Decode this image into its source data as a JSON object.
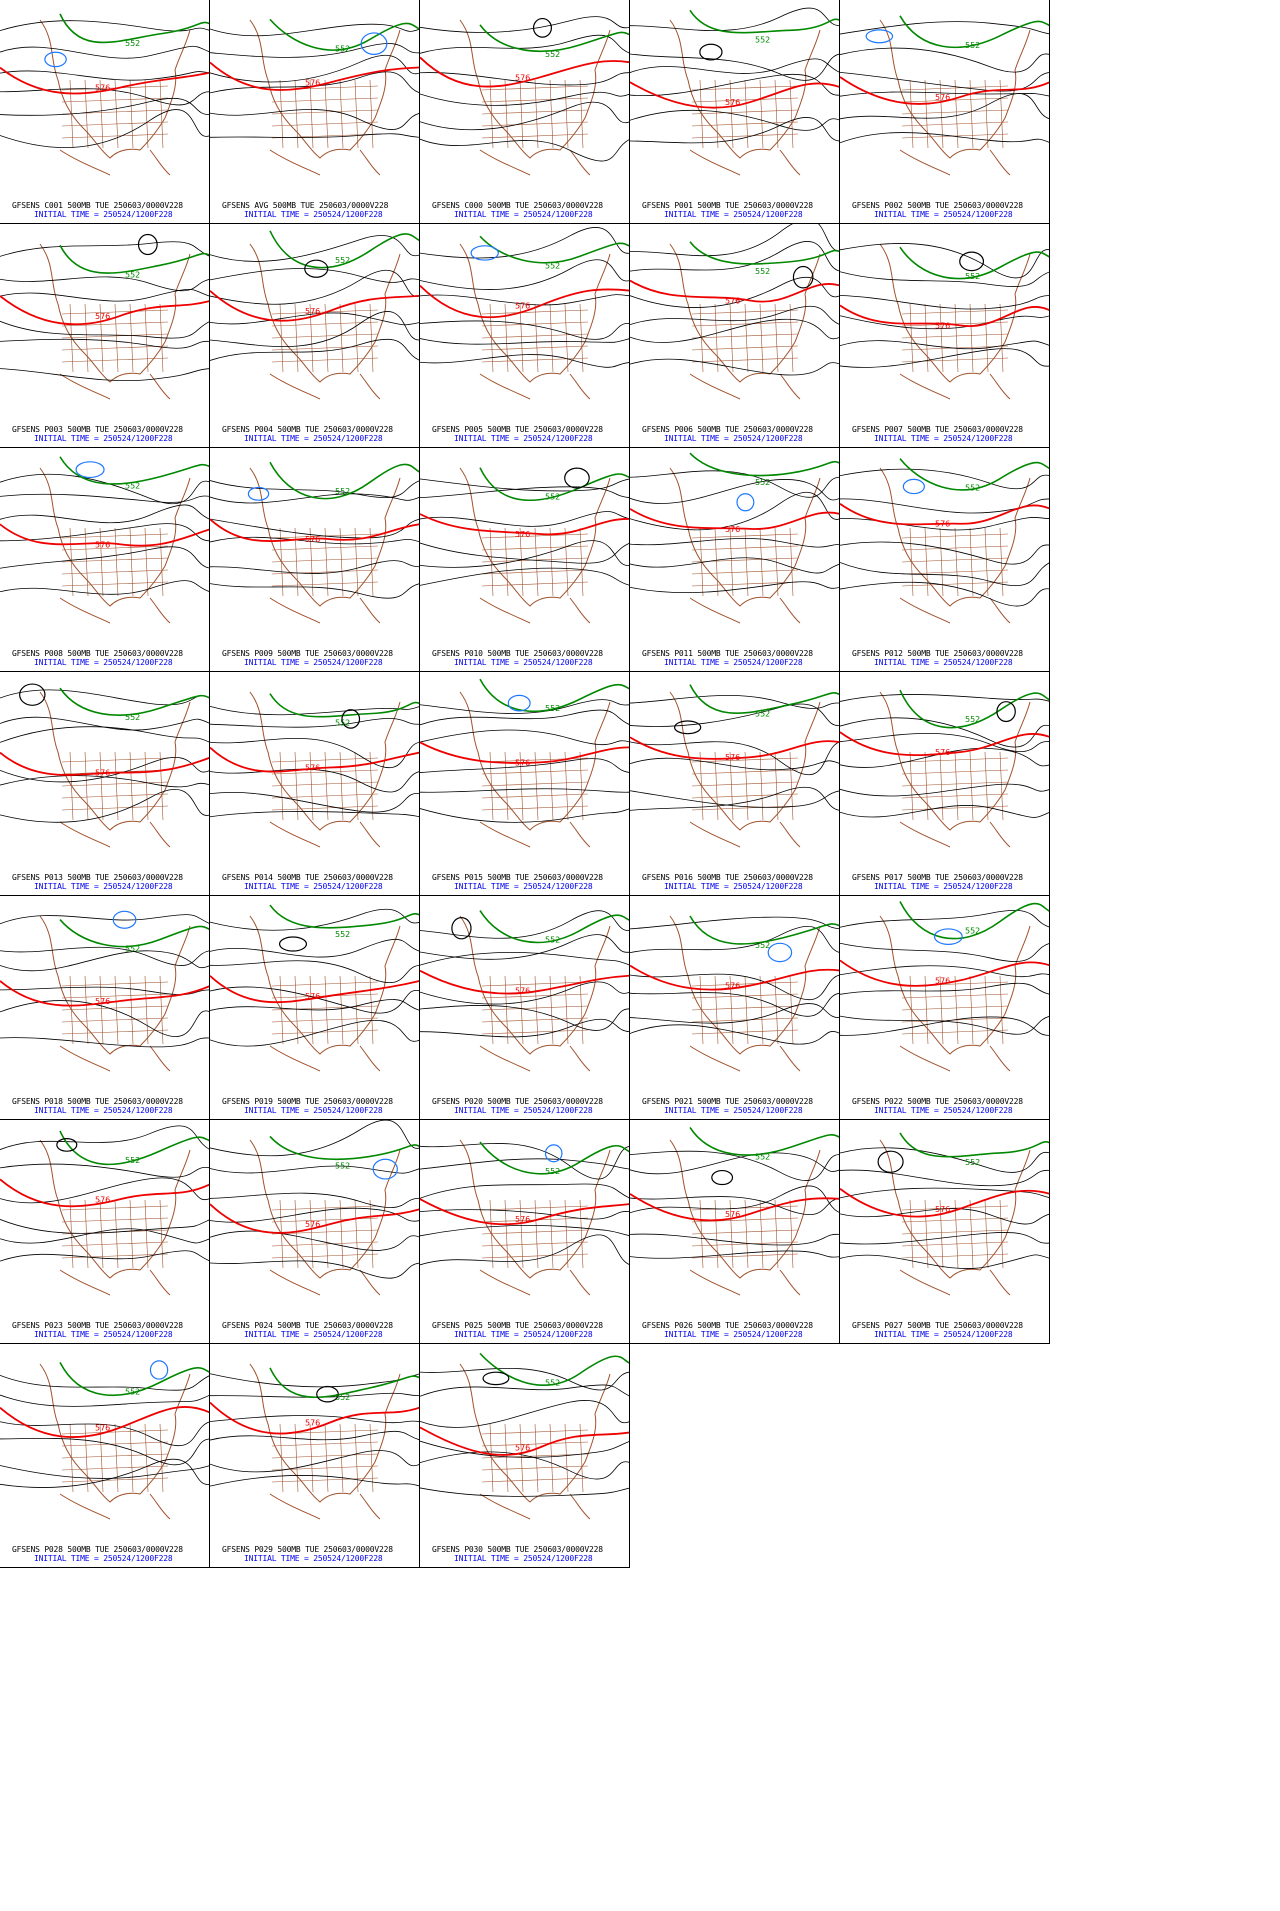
{
  "contour_colors": {
    "c576": "#ee0000",
    "c552": "#008800",
    "c528": "#1e78ff",
    "other": "#000000",
    "map": "#a0522d"
  },
  "panels": [
    {
      "title": "GFSENS C001 500MB TUE 250603/0000V228",
      "init": "INITIAL TIME = 250524/1200F228"
    },
    {
      "title": "GFSENS AVG 500MB TUE 250603/0000V228",
      "init": "INITIAL TIME = 250524/1200F228"
    },
    {
      "title": "GFSENS C000 500MB TUE 250603/0000V228",
      "init": "INITIAL TIME = 250524/1200F228"
    },
    {
      "title": "GFSENS P001 500MB TUE 250603/0000V228",
      "init": "INITIAL TIME = 250524/1200F228"
    },
    {
      "title": "GFSENS P002 500MB TUE 250603/0000V228",
      "init": "INITIAL TIME = 250524/1200F228"
    },
    {
      "title": "GFSENS P003 500MB TUE 250603/0000V228",
      "init": "INITIAL TIME = 250524/1200F228"
    },
    {
      "title": "GFSENS P004 500MB TUE 250603/0000V228",
      "init": "INITIAL TIME = 250524/1200F228"
    },
    {
      "title": "GFSENS P005 500MB TUE 250603/0000V228",
      "init": "INITIAL TIME = 250524/1200F228"
    },
    {
      "title": "GFSENS P006 500MB TUE 250603/0000V228",
      "init": "INITIAL TIME = 250524/1200F228"
    },
    {
      "title": "GFSENS P007 500MB TUE 250603/0000V228",
      "init": "INITIAL TIME = 250524/1200F228"
    },
    {
      "title": "GFSENS P008 500MB TUE 250603/0000V228",
      "init": "INITIAL TIME = 250524/1200F228"
    },
    {
      "title": "GFSENS P009 500MB TUE 250603/0000V228",
      "init": "INITIAL TIME = 250524/1200F228"
    },
    {
      "title": "GFSENS P010 500MB TUE 250603/0000V228",
      "init": "INITIAL TIME = 250524/1200F228"
    },
    {
      "title": "GFSENS P011 500MB TUE 250603/0000V228",
      "init": "INITIAL TIME = 250524/1200F228"
    },
    {
      "title": "GFSENS P012 500MB TUE 250603/0000V228",
      "init": "INITIAL TIME = 250524/1200F228"
    },
    {
      "title": "GFSENS P013 500MB TUE 250603/0000V228",
      "init": "INITIAL TIME = 250524/1200F228"
    },
    {
      "title": "GFSENS P014 500MB TUE 250603/0000V228",
      "init": "INITIAL TIME = 250524/1200F228"
    },
    {
      "title": "GFSENS P015 500MB TUE 250603/0000V228",
      "init": "INITIAL TIME = 250524/1200F228"
    },
    {
      "title": "GFSENS P016 500MB TUE 250603/0000V228",
      "init": "INITIAL TIME = 250524/1200F228"
    },
    {
      "title": "GFSENS P017 500MB TUE 250603/0000V228",
      "init": "INITIAL TIME = 250524/1200F228"
    },
    {
      "title": "GFSENS P018 500MB TUE 250603/0000V228",
      "init": "INITIAL TIME = 250524/1200F228"
    },
    {
      "title": "GFSENS P019 500MB TUE 250603/0000V228",
      "init": "INITIAL TIME = 250524/1200F228"
    },
    {
      "title": "GFSENS P020 500MB TUE 250603/0000V228",
      "init": "INITIAL TIME = 250524/1200F228"
    },
    {
      "title": "GFSENS P021 500MB TUE 250603/0000V228",
      "init": "INITIAL TIME = 250524/1200F228"
    },
    {
      "title": "GFSENS P022 500MB TUE 250603/0000V228",
      "init": "INITIAL TIME = 250524/1200F228"
    },
    {
      "title": "GFSENS P023 500MB TUE 250603/0000V228",
      "init": "INITIAL TIME = 250524/1200F228"
    },
    {
      "title": "GFSENS P024 500MB TUE 250603/0000V228",
      "init": "INITIAL TIME = 250524/1200F228"
    },
    {
      "title": "GFSENS P025 500MB TUE 250603/0000V228",
      "init": "INITIAL TIME = 250524/1200F228"
    },
    {
      "title": "GFSENS P026 500MB TUE 250603/0000V228",
      "init": "INITIAL TIME = 250524/1200F228"
    },
    {
      "title": "GFSENS P027 500MB TUE 250603/0000V228",
      "init": "INITIAL TIME = 250524/1200F228"
    },
    {
      "title": "GFSENS P028 500MB TUE 250603/0000V228",
      "init": "INITIAL TIME = 250524/1200F228"
    },
    {
      "title": "GFSENS P029 500MB TUE 250603/0000V228",
      "init": "INITIAL TIME = 250524/1200F228"
    },
    {
      "title": "GFSENS P030 500MB TUE 250603/0000V228",
      "init": "INITIAL TIME = 250524/1200F228"
    }
  ],
  "contour_labels": {
    "l576": "576",
    "l552": "552"
  }
}
